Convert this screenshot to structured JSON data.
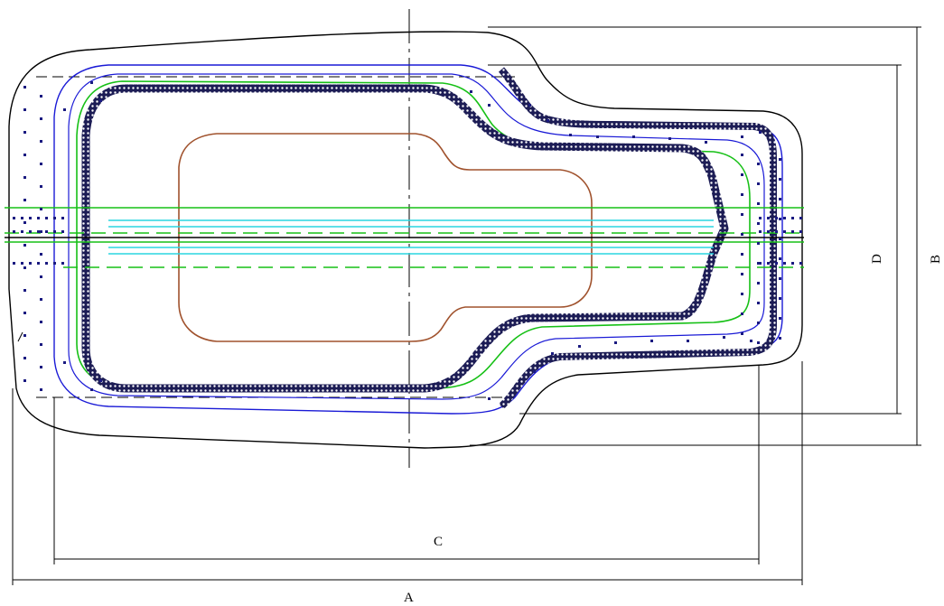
{
  "dimension_labels": {
    "A": "A",
    "B": "B",
    "C": "C",
    "D": "D"
  },
  "colors": {
    "outline": "#000000",
    "blue_contour": "#1a1ad6",
    "green_contour": "#16c016",
    "seal_band": "#1c1c55",
    "brown_cavity": "#a0522d",
    "cyan_lines": "#2ad6e0",
    "dot_fill": "#1a1a80"
  }
}
